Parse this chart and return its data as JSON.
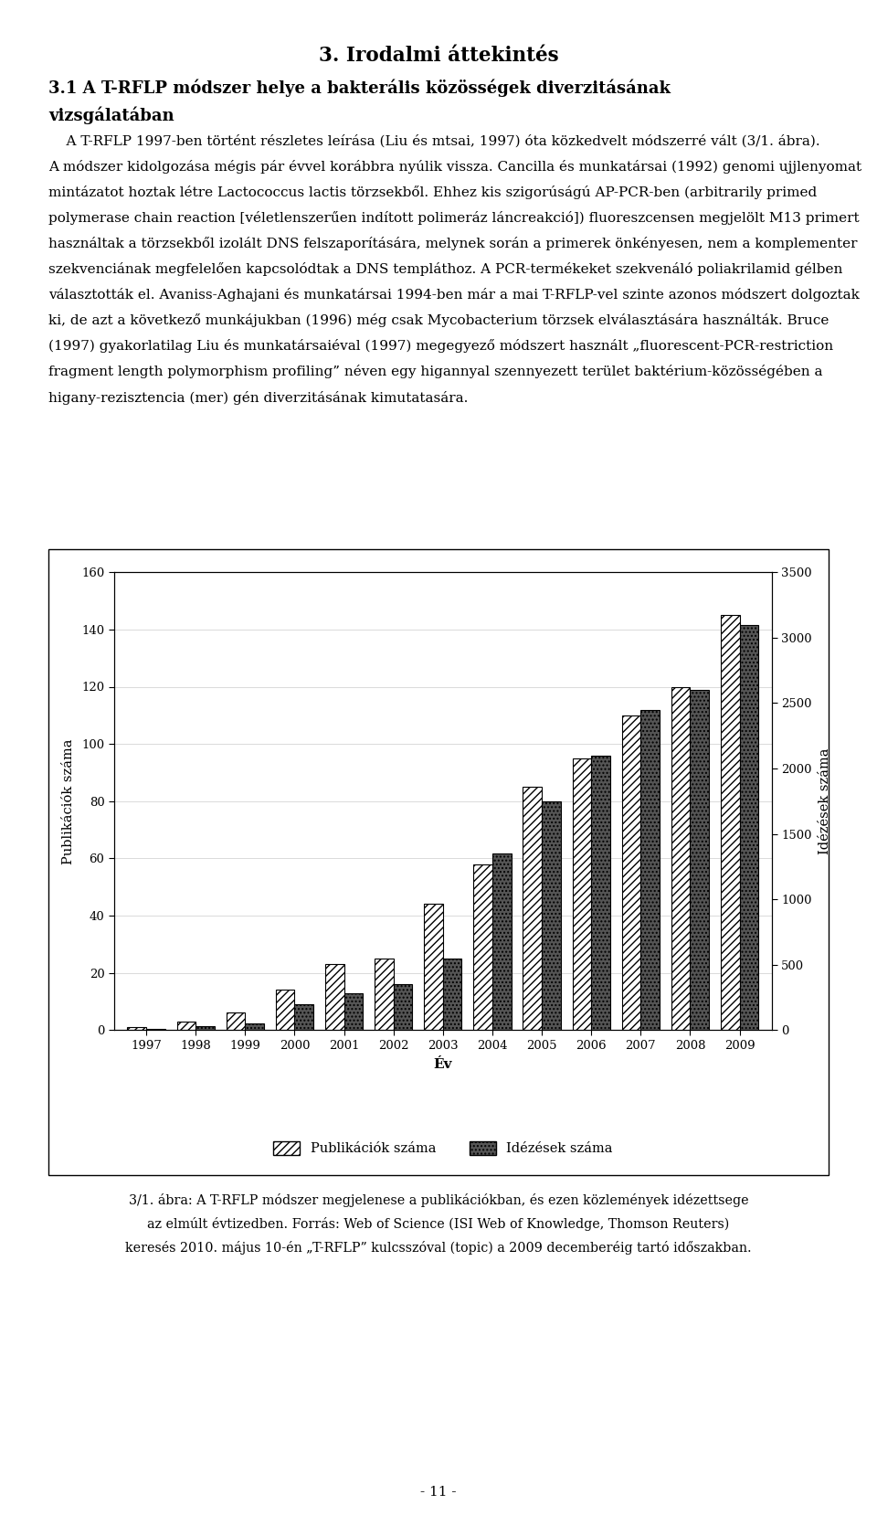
{
  "years": [
    1997,
    1998,
    1999,
    2000,
    2001,
    2002,
    2003,
    2004,
    2005,
    2006,
    2007,
    2008,
    2009
  ],
  "publikaciok": [
    1,
    3,
    6,
    14,
    23,
    25,
    44,
    58,
    85,
    95,
    110,
    120,
    145
  ],
  "idezesek": [
    10,
    30,
    50,
    200,
    280,
    350,
    550,
    1350,
    1750,
    2100,
    2450,
    2600,
    3100
  ],
  "left_ylim": [
    0,
    160
  ],
  "right_ylim": [
    0,
    3500
  ],
  "left_yticks": [
    0,
    20,
    40,
    60,
    80,
    100,
    120,
    140,
    160
  ],
  "right_yticks": [
    0,
    500,
    1000,
    1500,
    2000,
    2500,
    3000,
    3500
  ],
  "xlabel": "Év",
  "ylabel_left": "Publikációk száma",
  "ylabel_right": "Idézések száma",
  "legend_pub": "Publikációk száma",
  "legend_idez": "Idézések száma",
  "bar_width": 0.38,
  "chapter_title": "3. Irodalmi áttekintés",
  "section_line1": "3.1 A T-RFLP módszer helye a bakterális közösségek diverzitásának",
  "section_line2": "vizsgálatában",
  "body_para1_line1": "    A T-RFLP 1997-ben történt részletes leírása (Liu és mtsai, 1997) óta közkedvelt módszerré vált (3/1. ábra).",
  "body_para1_line2": "A módszer kidolgozása mégis pár évvel korábbra nyúlik vissza. Cancilla és munkatársai (1992) genomi ujjlenyomat",
  "body_para1_line3": "mintázatot hoztak létre Lactococcus lactis törzsekből. Ehhez kis szigorúságú AP-PCR-ben (arbitrarily primed",
  "body_para1_line4": "polymerase chain reaction [véletlenszerűen indított polimeráz láncreakció]) fluoreszcensen megjelölt M13 primert",
  "body_para1_line5": "használtak a törzsekből izolált DNS felszaporítására, melynek során a primerek önkényesen, nem a komplementer",
  "body_para1_line6": "szekvenciának megfelelően kapcsolódtak a DNS templáthoz. A PCR-termékeket szekvenáló poliakrilamid gélben",
  "body_para1_line7": "választották el. Avaniss-Aghajani és munkatársai 1994-ben már a mai T-RFLP-vel szinte azonos módszert dolgoztak",
  "body_para1_line8": "ki, de azt a következő munkájukban (1996) még csak Mycobacterium törzsek elválasztására használták. Bruce",
  "body_para1_line9": "(1997) gyakorlatilag Liu és munkatársaiéval (1997) megegyező módszert használt „fluorescent-PCR-restriction",
  "body_para1_line10": "fragment length polymorphism profiling” néven egy higannyal szennyezett terület baktérium-közösségében a",
  "body_para1_line11": "higany-rezisztencia (mer) gén diverzitásának kimutatasára.",
  "caption_line1": "3/1. ábra: A T-RFLP módszer megjelenese a publikációkban, és ezen közlemények idézettsege",
  "caption_line2": "az elmúlt évtizedben. Forrás: Web of Science (ISI Web of Knowledge, Thomson Reuters)",
  "caption_line3": "keresés 2010. május 10-én „T-RFLP” kulcsszóval (topic) a 2009 decemberéig tartó időszakban.",
  "page_number": "- 11 -",
  "bg": "#ffffff",
  "tc": "#000000",
  "bar_color_pub": "#ffffff",
  "bar_color_idez": "#555555",
  "bar_edgecolor": "#000000"
}
